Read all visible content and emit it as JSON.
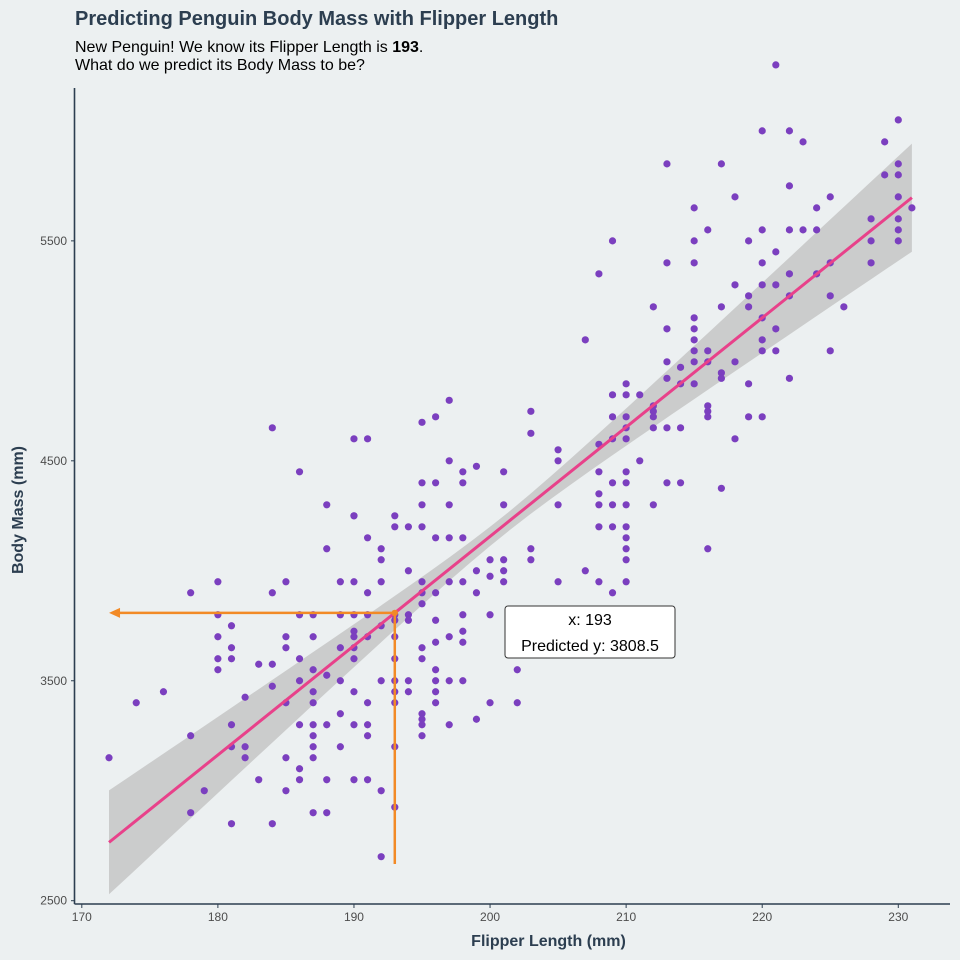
{
  "chart_data": {
    "type": "scatter",
    "title": "Predicting Penguin Body Mass with Flipper Length",
    "subtitle": {
      "line1_prefix": "New Penguin! We know its Flipper Length is ",
      "line1_value": "193",
      "line1_suffix": ".",
      "line2": "What do we predict its Body Mass to be?"
    },
    "xlabel": "Flipper Length (mm)",
    "ylabel": "Body Mass (mm)",
    "xlim": [
      169.5,
      233.8
    ],
    "ylim": [
      2485,
      6195
    ],
    "xticks": [
      170,
      180,
      190,
      200,
      210,
      220,
      230
    ],
    "yticks": [
      2500,
      3500,
      4500,
      5500
    ],
    "grid": false,
    "points": [
      [
        172,
        3150
      ],
      [
        174,
        3400
      ],
      [
        176,
        3450
      ],
      [
        178,
        3900
      ],
      [
        178,
        3250
      ],
      [
        178,
        2900
      ],
      [
        179,
        3000
      ],
      [
        180,
        3950
      ],
      [
        180,
        3800
      ],
      [
        180,
        3700
      ],
      [
        180,
        3600
      ],
      [
        180,
        3550
      ],
      [
        181,
        3750
      ],
      [
        181,
        3650
      ],
      [
        181,
        3600
      ],
      [
        181,
        3300
      ],
      [
        181,
        3200
      ],
      [
        181,
        2850
      ],
      [
        182,
        3200
      ],
      [
        182,
        3150
      ],
      [
        182,
        3425
      ],
      [
        183,
        3575
      ],
      [
        183,
        3050
      ],
      [
        184,
        4650
      ],
      [
        184,
        3900
      ],
      [
        184,
        3575
      ],
      [
        184,
        3475
      ],
      [
        184,
        2850
      ],
      [
        185,
        3950
      ],
      [
        185,
        3700
      ],
      [
        185,
        3650
      ],
      [
        185,
        3400
      ],
      [
        185,
        3150
      ],
      [
        185,
        3000
      ],
      [
        186,
        4450
      ],
      [
        186,
        3800
      ],
      [
        186,
        3600
      ],
      [
        186,
        3500
      ],
      [
        186,
        3300
      ],
      [
        186,
        3100
      ],
      [
        186,
        3050
      ],
      [
        187,
        3800
      ],
      [
        187,
        3700
      ],
      [
        187,
        3550
      ],
      [
        187,
        3450
      ],
      [
        187,
        3400
      ],
      [
        187,
        3300
      ],
      [
        187,
        3250
      ],
      [
        187,
        3200
      ],
      [
        187,
        3150
      ],
      [
        187,
        2900
      ],
      [
        188,
        4300
      ],
      [
        188,
        4100
      ],
      [
        188,
        3525
      ],
      [
        188,
        3300
      ],
      [
        188,
        3050
      ],
      [
        188,
        2900
      ],
      [
        189,
        3950
      ],
      [
        189,
        3800
      ],
      [
        189,
        3650
      ],
      [
        189,
        3500
      ],
      [
        189,
        3350
      ],
      [
        189,
        3200
      ],
      [
        190,
        4600
      ],
      [
        190,
        4250
      ],
      [
        190,
        4250
      ],
      [
        190,
        3950
      ],
      [
        190,
        3800
      ],
      [
        190,
        3725
      ],
      [
        190,
        3700
      ],
      [
        190,
        3650
      ],
      [
        190,
        3600
      ],
      [
        190,
        3450
      ],
      [
        190,
        3300
      ],
      [
        190,
        3050
      ],
      [
        191,
        4600
      ],
      [
        191,
        4150
      ],
      [
        191,
        3900
      ],
      [
        191,
        3800
      ],
      [
        191,
        3700
      ],
      [
        191,
        3400
      ],
      [
        191,
        3300
      ],
      [
        191,
        3250
      ],
      [
        191,
        3050
      ],
      [
        192,
        4100
      ],
      [
        192,
        4050
      ],
      [
        192,
        3950
      ],
      [
        192,
        3750
      ],
      [
        192,
        3500
      ],
      [
        192,
        3000
      ],
      [
        192,
        2700
      ],
      [
        193,
        4250
      ],
      [
        193,
        4200
      ],
      [
        193,
        3800
      ],
      [
        193,
        3775
      ],
      [
        193,
        3700
      ],
      [
        193,
        3600
      ],
      [
        193,
        3500
      ],
      [
        193,
        3450
      ],
      [
        193,
        3400
      ],
      [
        193,
        3200
      ],
      [
        193,
        2925
      ],
      [
        194,
        4200
      ],
      [
        194,
        4000
      ],
      [
        194,
        3800
      ],
      [
        194,
        3775
      ],
      [
        194,
        3500
      ],
      [
        194,
        3450
      ],
      [
        195,
        4675
      ],
      [
        195,
        4400
      ],
      [
        195,
        4300
      ],
      [
        195,
        4200
      ],
      [
        195,
        3950
      ],
      [
        195,
        3900
      ],
      [
        195,
        3850
      ],
      [
        195,
        3650
      ],
      [
        195,
        3600
      ],
      [
        195,
        3350
      ],
      [
        195,
        3325
      ],
      [
        195,
        3300
      ],
      [
        195,
        3250
      ],
      [
        196,
        4700
      ],
      [
        196,
        4400
      ],
      [
        196,
        4150
      ],
      [
        196,
        3900
      ],
      [
        196,
        3775
      ],
      [
        196,
        3675
      ],
      [
        196,
        3550
      ],
      [
        196,
        3500
      ],
      [
        196,
        3450
      ],
      [
        196,
        3400
      ],
      [
        197,
        4775
      ],
      [
        197,
        4500
      ],
      [
        197,
        4300
      ],
      [
        197,
        4150
      ],
      [
        197,
        3950
      ],
      [
        197,
        3700
      ],
      [
        197,
        3500
      ],
      [
        197,
        3300
      ],
      [
        198,
        4450
      ],
      [
        198,
        4400
      ],
      [
        198,
        4150
      ],
      [
        198,
        3950
      ],
      [
        198,
        3800
      ],
      [
        198,
        3725
      ],
      [
        198,
        3675
      ],
      [
        198,
        3500
      ],
      [
        199,
        4475
      ],
      [
        199,
        4000
      ],
      [
        199,
        3900
      ],
      [
        199,
        3325
      ],
      [
        200,
        4050
      ],
      [
        200,
        3975
      ],
      [
        200,
        3800
      ],
      [
        200,
        3400
      ],
      [
        201,
        4450
      ],
      [
        201,
        4300
      ],
      [
        201,
        4050
      ],
      [
        201,
        4000
      ],
      [
        201,
        3950
      ],
      [
        202,
        3550
      ],
      [
        202,
        3400
      ],
      [
        203,
        4725
      ],
      [
        203,
        4625
      ],
      [
        203,
        4100
      ],
      [
        203,
        4050
      ],
      [
        205,
        4550
      ],
      [
        205,
        4500
      ],
      [
        205,
        4300
      ],
      [
        205,
        3950
      ],
      [
        207,
        5050
      ],
      [
        207,
        4000
      ],
      [
        208,
        5350
      ],
      [
        208,
        4575
      ],
      [
        208,
        4450
      ],
      [
        208,
        4350
      ],
      [
        208,
        4300
      ],
      [
        208,
        4200
      ],
      [
        208,
        3950
      ],
      [
        209,
        5500
      ],
      [
        209,
        4800
      ],
      [
        209,
        4700
      ],
      [
        209,
        4600
      ],
      [
        209,
        4400
      ],
      [
        209,
        4300
      ],
      [
        209,
        4200
      ],
      [
        209,
        3900
      ],
      [
        210,
        4850
      ],
      [
        210,
        4800
      ],
      [
        210,
        4700
      ],
      [
        210,
        4650
      ],
      [
        210,
        4600
      ],
      [
        210,
        4450
      ],
      [
        210,
        4400
      ],
      [
        210,
        4300
      ],
      [
        210,
        4200
      ],
      [
        210,
        4150
      ],
      [
        210,
        4100
      ],
      [
        210,
        4050
      ],
      [
        210,
        3950
      ],
      [
        211,
        4800
      ],
      [
        211,
        4500
      ],
      [
        212,
        5200
      ],
      [
        212,
        4750
      ],
      [
        212,
        4725
      ],
      [
        212,
        4700
      ],
      [
        212,
        4650
      ],
      [
        212,
        4300
      ],
      [
        213,
        5850
      ],
      [
        213,
        5400
      ],
      [
        213,
        5100
      ],
      [
        213,
        4950
      ],
      [
        213,
        4875
      ],
      [
        213,
        4650
      ],
      [
        213,
        4400
      ],
      [
        214,
        4925
      ],
      [
        214,
        4850
      ],
      [
        214,
        4650
      ],
      [
        214,
        4400
      ],
      [
        215,
        5650
      ],
      [
        215,
        5500
      ],
      [
        215,
        5400
      ],
      [
        215,
        5150
      ],
      [
        215,
        5100
      ],
      [
        215,
        5050
      ],
      [
        215,
        5000
      ],
      [
        215,
        4950
      ],
      [
        215,
        4850
      ],
      [
        216,
        5550
      ],
      [
        216,
        5000
      ],
      [
        216,
        4950
      ],
      [
        216,
        4750
      ],
      [
        216,
        4725
      ],
      [
        216,
        4700
      ],
      [
        216,
        4100
      ],
      [
        217,
        5850
      ],
      [
        217,
        5200
      ],
      [
        217,
        4900
      ],
      [
        217,
        4875
      ],
      [
        217,
        4375
      ],
      [
        218,
        5700
      ],
      [
        218,
        5300
      ],
      [
        218,
        4950
      ],
      [
        218,
        4600
      ],
      [
        219,
        5500
      ],
      [
        219,
        5250
      ],
      [
        219,
        5200
      ],
      [
        219,
        4850
      ],
      [
        219,
        4700
      ],
      [
        220,
        6000
      ],
      [
        220,
        5550
      ],
      [
        220,
        5400
      ],
      [
        220,
        5300
      ],
      [
        220,
        5150
      ],
      [
        220,
        5050
      ],
      [
        220,
        5000
      ],
      [
        220,
        4700
      ],
      [
        221,
        6300
      ],
      [
        221,
        5450
      ],
      [
        221,
        5300
      ],
      [
        221,
        5100
      ],
      [
        221,
        5000
      ],
      [
        222,
        6000
      ],
      [
        222,
        5750
      ],
      [
        222,
        5550
      ],
      [
        222,
        5350
      ],
      [
        222,
        5250
      ],
      [
        222,
        4875
      ],
      [
        223,
        5950
      ],
      [
        223,
        5550
      ],
      [
        224,
        5650
      ],
      [
        224,
        5550
      ],
      [
        224,
        5350
      ],
      [
        225,
        5700
      ],
      [
        225,
        5400
      ],
      [
        225,
        5250
      ],
      [
        225,
        5000
      ],
      [
        226,
        5200
      ],
      [
        228,
        5600
      ],
      [
        228,
        5500
      ],
      [
        228,
        5400
      ],
      [
        229,
        5950
      ],
      [
        229,
        5800
      ],
      [
        230,
        6050
      ],
      [
        230,
        5850
      ],
      [
        230,
        5800
      ],
      [
        230,
        5700
      ],
      [
        230,
        5600
      ],
      [
        230,
        5550
      ],
      [
        230,
        5500
      ],
      [
        231,
        5650
      ]
    ],
    "regression": {
      "intercept": -5780.83,
      "slope": 49.686,
      "x_range": [
        172,
        231
      ],
      "se_at_mean": 22,
      "x_mean": 200.9,
      "se_slope_coef": 4.1
    },
    "prediction": {
      "x": 193,
      "y": 3808.5
    },
    "annotation": {
      "line1": "x: 193",
      "line2": "Predicted y: 3808.5"
    },
    "colors": {
      "points": "#7b3fbf",
      "line": "#e8418a",
      "band": "#c6c6c6",
      "guide": "#f28a26",
      "axis": "#2c3e50",
      "background": "#ecf0f1"
    }
  }
}
